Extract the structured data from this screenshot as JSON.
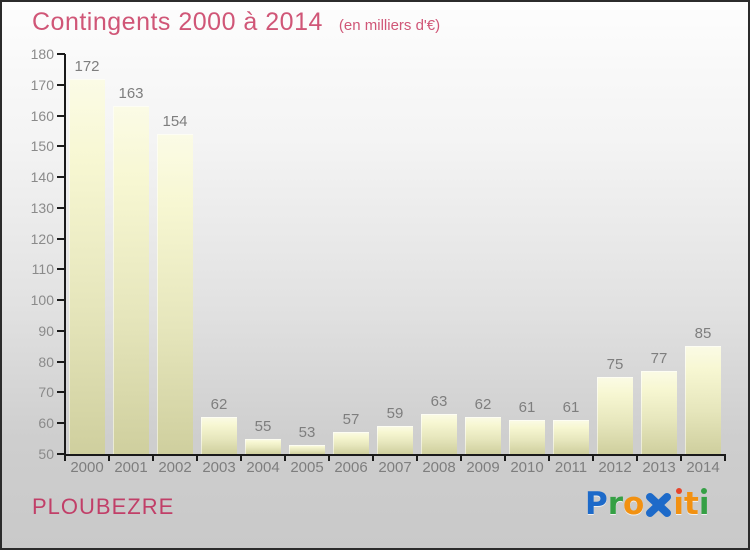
{
  "header": {
    "title": "Contingents 2000 à 2014",
    "subtitle": "(en milliers d'€)"
  },
  "footer": {
    "place_name": "PLOUBEZRE",
    "logo_text": "Proxiti"
  },
  "logo_letters": [
    {
      "ch": "P",
      "color": "#1d6ac9"
    },
    {
      "ch": "r",
      "color": "#35a045"
    },
    {
      "ch": "o",
      "color": "#f29111"
    },
    {
      "ch": "x",
      "color": "#1d6ac9",
      "icon": "x-mark"
    },
    {
      "ch": "i",
      "color": "#f29111",
      "dot_color": "#e8442a"
    },
    {
      "ch": "t",
      "color": "#f29111"
    },
    {
      "ch": "i",
      "color": "#35a045",
      "dot_color": "#35a045"
    }
  ],
  "colors": {
    "title_pink": "#d05677",
    "place_pink": "#c13f68",
    "axis": "#1a1a1a",
    "tick_label_gray": "#8a8a8a",
    "value_label_gray": "#7e7e7e",
    "bar_top": "#fbfbe6",
    "bar_bottom": "#cfcf9e"
  },
  "chart_data": {
    "type": "bar",
    "title": "Contingents 2000 à 2014",
    "subtitle": "(en milliers d'€)",
    "categories": [
      "2000",
      "2001",
      "2002",
      "2003",
      "2004",
      "2005",
      "2006",
      "2007",
      "2008",
      "2009",
      "2010",
      "2011",
      "2012",
      "2013",
      "2014"
    ],
    "values": [
      172,
      163,
      154,
      62,
      55,
      53,
      57,
      59,
      63,
      62,
      61,
      61,
      75,
      77,
      85
    ],
    "xlabel": "",
    "ylabel": "",
    "ylim": [
      50,
      180
    ],
    "ytick_step": 10,
    "grid": false,
    "legend": false,
    "value_labels_shown": true
  }
}
